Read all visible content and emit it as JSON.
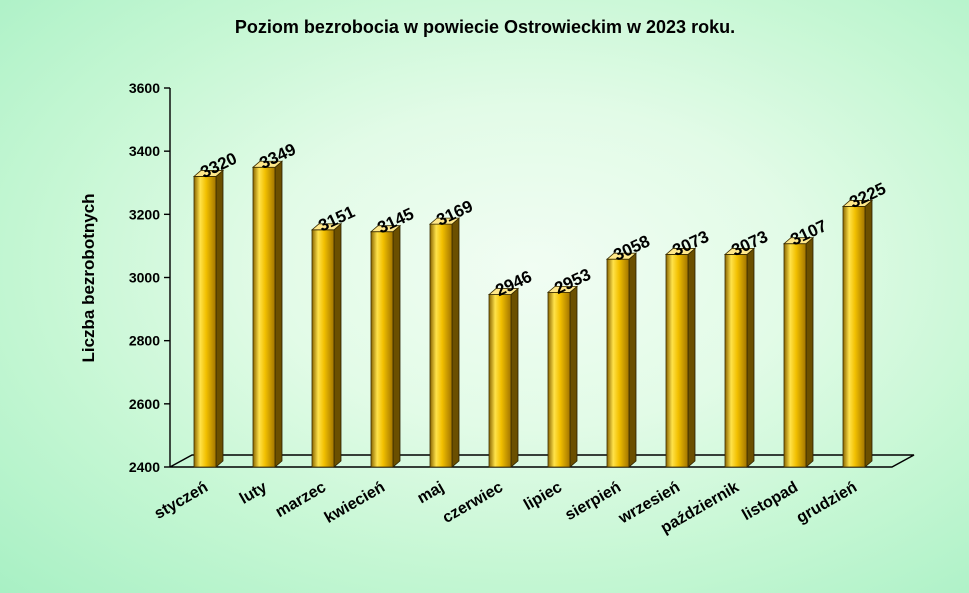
{
  "chart_data": {
    "type": "bar",
    "title": "Poziom bezrobocia w powiecie  Ostrowieckim  w 2023 roku.",
    "xlabel": "",
    "ylabel": "Liczba bezrobotnych",
    "ylim": [
      2400,
      3600
    ],
    "yticks": [
      2400,
      2600,
      2800,
      3000,
      3200,
      3400,
      3600
    ],
    "categories": [
      "styczeń",
      "luty",
      "marzec",
      "kwiecień",
      "maj",
      "czerwiec",
      "lipiec",
      "sierpień",
      "wrzesień",
      "październik",
      "listopad",
      "grudzień"
    ],
    "values": [
      3320,
      3349,
      3151,
      3145,
      3169,
      2946,
      2953,
      3058,
      3073,
      3073,
      3107,
      3225
    ],
    "grid": false,
    "legend": "none",
    "bar_color": "#e0b000",
    "background_color": "#c6f7d4"
  }
}
